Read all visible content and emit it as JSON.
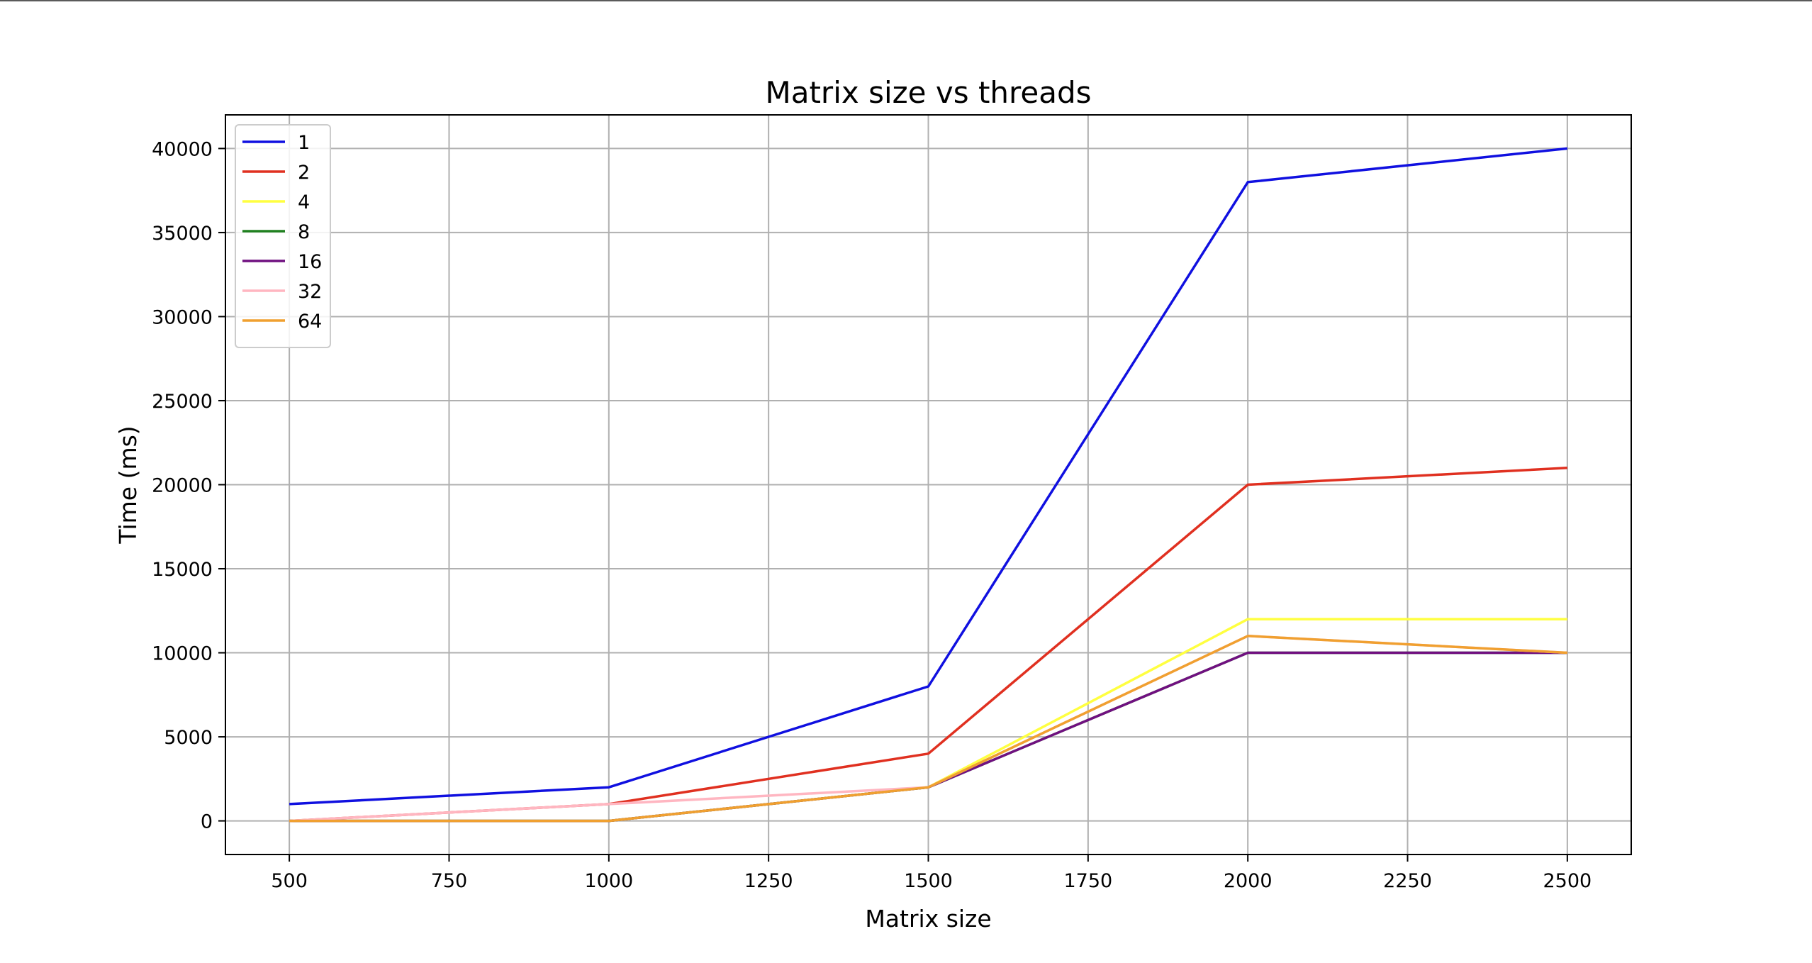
{
  "chart_data": {
    "type": "line",
    "title": "Matrix size vs threads",
    "xlabel": "Matrix size",
    "ylabel": "Time (ms)",
    "x": [
      500,
      1000,
      1500,
      2000,
      2500
    ],
    "xlim": [
      400,
      2600
    ],
    "ylim": [
      -2000,
      42000
    ],
    "xticks": [
      500,
      750,
      1000,
      1250,
      1500,
      1750,
      2000,
      2250,
      2500
    ],
    "yticks": [
      0,
      5000,
      10000,
      15000,
      20000,
      25000,
      30000,
      35000,
      40000
    ],
    "grid": true,
    "legend_position": "top-left",
    "series": [
      {
        "name": "1",
        "color": "#1010e0",
        "values": [
          1000,
          2000,
          8000,
          38000,
          40000
        ]
      },
      {
        "name": "2",
        "color": "#e03020",
        "values": [
          0,
          1000,
          4000,
          20000,
          21000
        ]
      },
      {
        "name": "4",
        "color": "#ffff40",
        "values": [
          0,
          0,
          2000,
          12000,
          12000
        ]
      },
      {
        "name": "8",
        "color": "#208020",
        "values": [
          0,
          0,
          2000,
          10000,
          10000
        ]
      },
      {
        "name": "16",
        "color": "#701080",
        "values": [
          0,
          0,
          2000,
          10000,
          10000
        ]
      },
      {
        "name": "32",
        "color": "#ffb6c1",
        "values": [
          0,
          1000,
          2000,
          11000,
          10000
        ]
      },
      {
        "name": "64",
        "color": "#f0a030",
        "values": [
          0,
          0,
          2000,
          11000,
          10000
        ]
      }
    ]
  }
}
